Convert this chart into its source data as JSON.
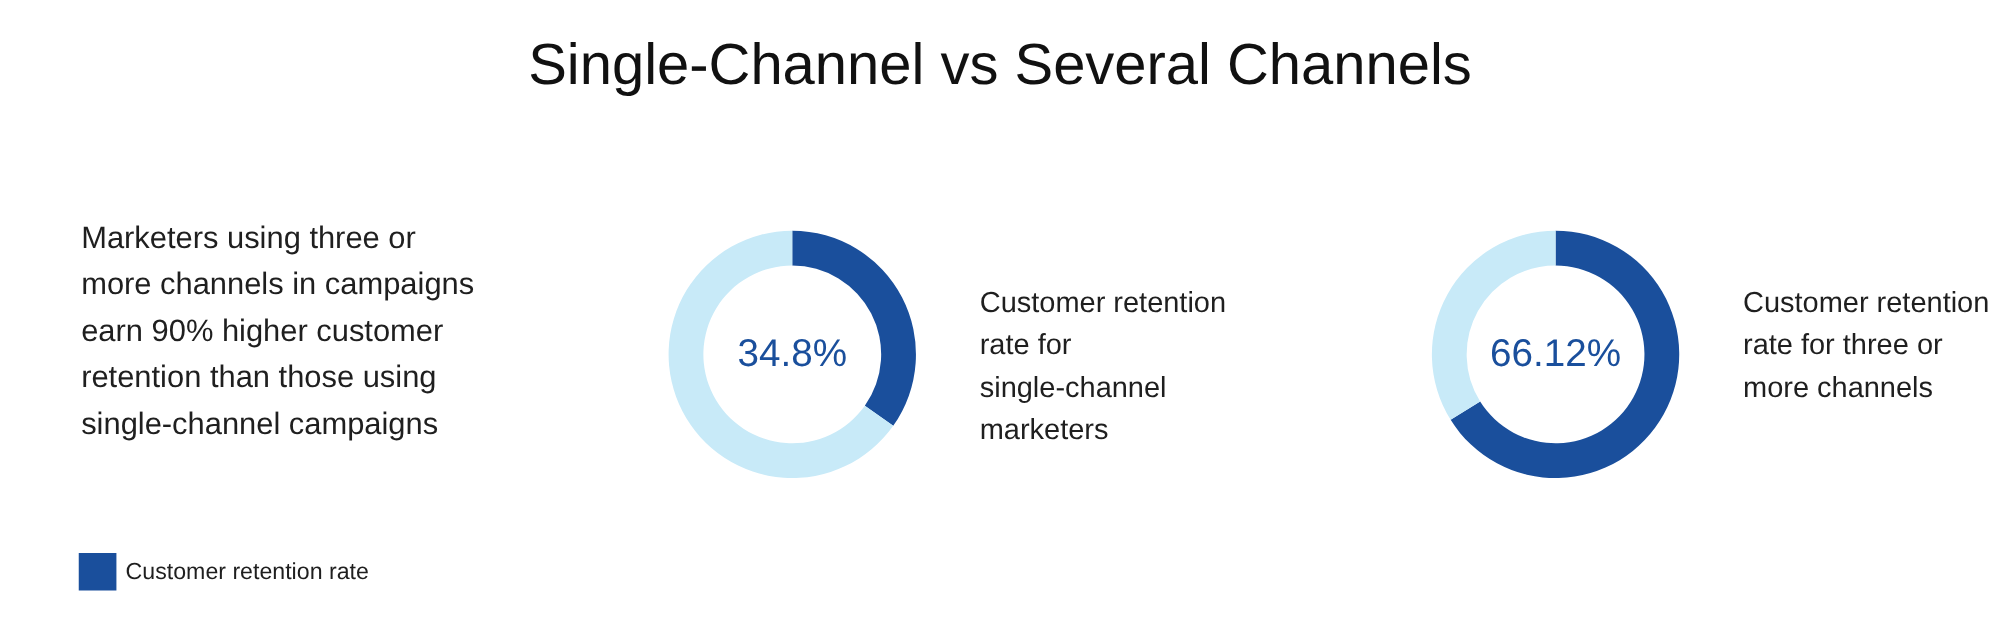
{
  "chart_data": [
    {
      "type": "donut",
      "title": "Single-Channel vs Several Channels",
      "categories": [
        "Customer retention rate",
        null
      ],
      "values": [
        34.8,
        65.2
      ],
      "colors": [
        "#1a4f9c",
        "#c8eaf8"
      ],
      "legend": "bottom left",
      "annotations": [
        "34.8%",
        "Marketers using three or more channels in campaigns earn 90% higher customer retention than those using single-channel campaigns",
        "Customer retention rate for single-channel marketers"
      ]
    },
    {
      "type": "donut",
      "categories": [
        null,
        null
      ],
      "values": [
        66.12,
        33.88
      ],
      "colors": [
        "#1a4f9c",
        "#c8eaf8"
      ],
      "annotations": [
        "66.12%",
        "Customer retention rate for three or more channels"
      ]
    }
  ]
}
